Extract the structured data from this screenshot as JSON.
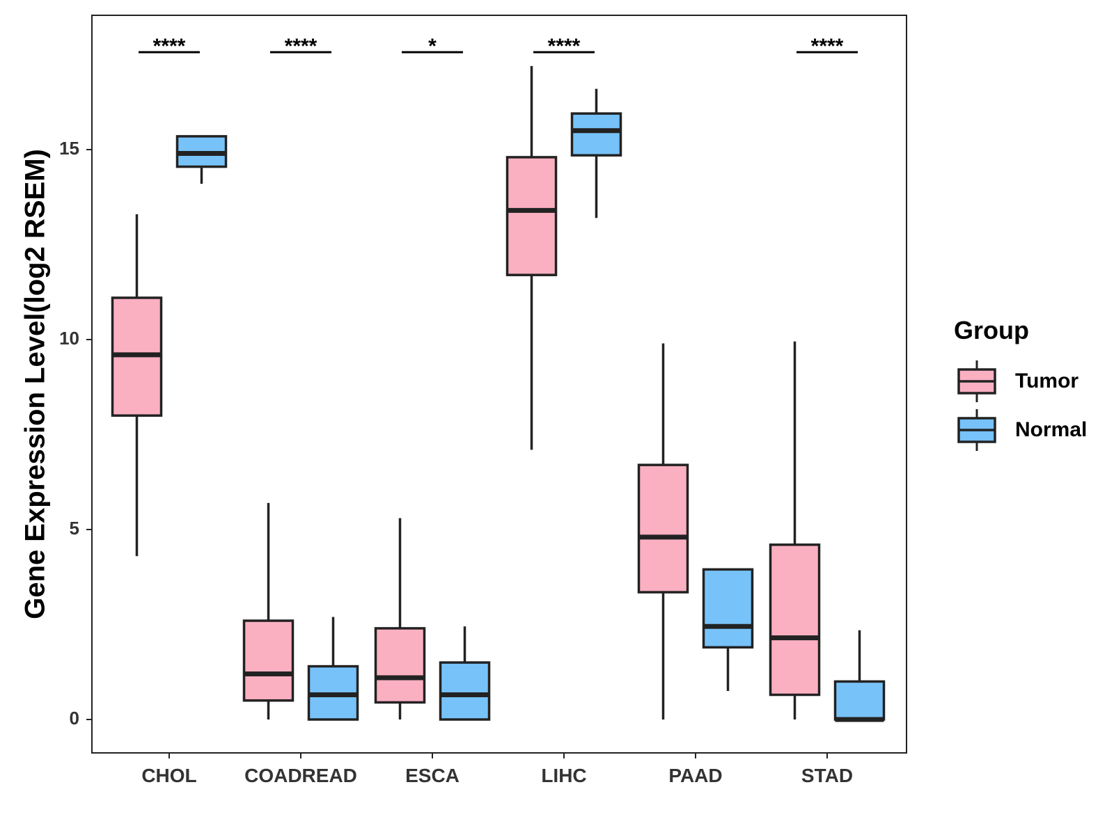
{
  "chart_data": {
    "type": "boxplot",
    "title": "",
    "xlabel": "",
    "ylabel": "Gene Expression Level(log2 RSEM)",
    "ylim": [
      -0.85,
      18.5
    ],
    "yticks": [
      0,
      5,
      10,
      15
    ],
    "categories": [
      "CHOL",
      "COADREAD",
      "ESCA",
      "LIHC",
      "PAAD",
      "STAD"
    ],
    "legend": {
      "title": "Group",
      "position": "right",
      "entries": [
        "Tumor",
        "Normal"
      ]
    },
    "colors": {
      "Tumor": "#FBB0C2",
      "Normal": "#77C2F9",
      "stroke": "#222222"
    },
    "series": [
      {
        "name": "Tumor",
        "boxes": [
          {
            "min": 4.3,
            "q1": 8.0,
            "median": 9.6,
            "q3": 11.1,
            "max": 13.3
          },
          {
            "min": 0.0,
            "q1": 0.5,
            "median": 1.2,
            "q3": 2.6,
            "max": 5.7
          },
          {
            "min": 0.0,
            "q1": 0.45,
            "median": 1.1,
            "q3": 2.4,
            "max": 5.3
          },
          {
            "min": 7.1,
            "q1": 11.7,
            "median": 13.4,
            "q3": 14.8,
            "max": 17.2
          },
          {
            "min": 0.0,
            "q1": 3.35,
            "median": 4.8,
            "q3": 6.7,
            "max": 9.9
          },
          {
            "min": 0.0,
            "q1": 0.65,
            "median": 2.15,
            "q3": 4.6,
            "max": 9.95
          }
        ]
      },
      {
        "name": "Normal",
        "boxes": [
          {
            "min": 14.1,
            "q1": 14.55,
            "median": 14.9,
            "q3": 15.35,
            "max": 15.35
          },
          {
            "min": 0.0,
            "q1": 0.0,
            "median": 0.65,
            "q3": 1.4,
            "max": 2.7
          },
          {
            "min": 0.0,
            "q1": 0.0,
            "median": 0.65,
            "q3": 1.5,
            "max": 2.45
          },
          {
            "min": 13.2,
            "q1": 14.85,
            "median": 15.5,
            "q3": 15.95,
            "max": 16.6
          },
          {
            "min": 0.75,
            "q1": 1.9,
            "median": 2.45,
            "q3": 3.95,
            "max": 3.95
          },
          {
            "min": 0.0,
            "q1": 0.0,
            "median": 0.0,
            "q3": 1.0,
            "max": 2.35
          }
        ]
      }
    ],
    "significance": [
      "****",
      "****",
      "*",
      "****",
      "",
      "****"
    ]
  }
}
